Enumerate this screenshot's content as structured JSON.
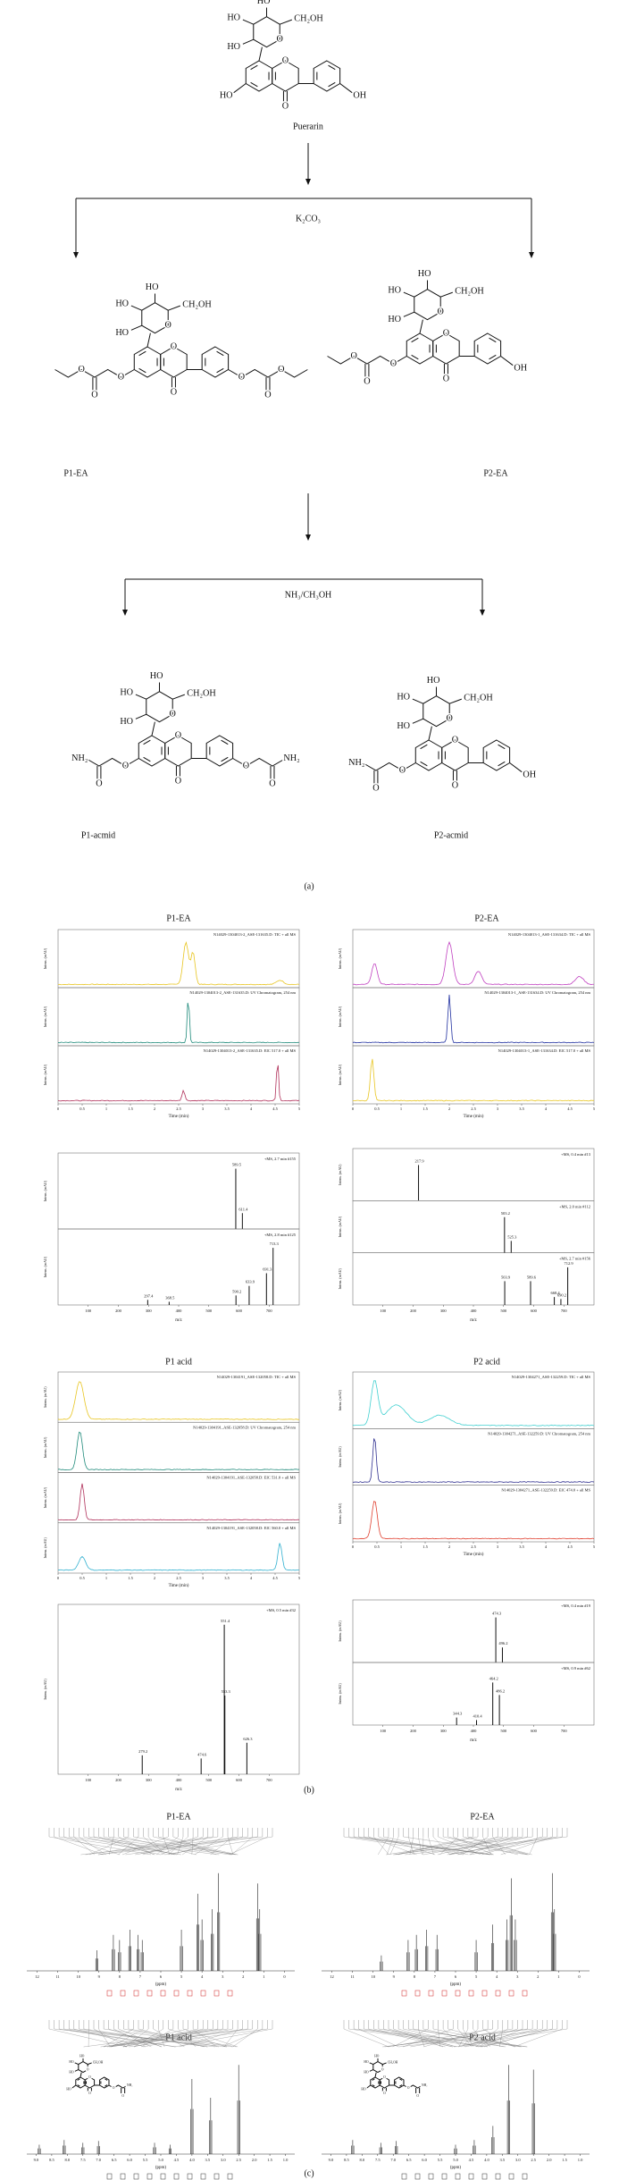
{
  "atoms": {
    "ho": "HO",
    "oh": "OH",
    "ch2oh": "CH₂OH",
    "o": "O",
    "nh2": "NH₂"
  },
  "panel_a": {
    "compounds": [
      "Puerarin",
      "P1-EA",
      "P2-EA",
      "P1-acmid",
      "P2-acmid"
    ],
    "reagents": [
      "K₂CO₃",
      "NH₃/CH₃OH"
    ],
    "label": "(a)"
  },
  "panel_b": {
    "label": "(b)",
    "time_axis_label": "Time (min)",
    "mz_axis_label": "m/z",
    "intensity_label": "Intens. (mAU)",
    "time_ticks": [
      0,
      0.5,
      1,
      1.5,
      2,
      2.5,
      3,
      3.5,
      4,
      4.5,
      5
    ],
    "time_xlim": [
      0,
      5
    ],
    "mz_ticks": [
      100,
      200,
      300,
      400,
      500,
      600,
      700
    ],
    "mz_xlim": [
      0,
      800
    ],
    "groups": [
      {
        "title": "P1-EA",
        "traces": [
          {
            "name": "N14029-1304013-2_ASE-131635.D: TIC + all MS",
            "color": "#e8c520"
          },
          {
            "name": "N14029-1304013-2_ASE-131635.D: UV Chromatogram, 254 nm",
            "color": "#1e8a7a"
          },
          {
            "name": "N14029-1304013-2_ASE-131635.D: EIC 517.0 + all MS",
            "color": "#b0305a"
          }
        ],
        "ms": [
          {
            "name": "+MS, 2.7 min #155",
            "peaks": [
              589.5,
              611.4
            ]
          },
          {
            "name": "+MS, 2.8 min #125",
            "peaks": [
              297.4,
              368.5,
              590.2,
              633.9,
              691.3,
              713.3
            ]
          }
        ]
      },
      {
        "title": "P2-EA",
        "traces": [
          {
            "name": "N14029-1304013-1_ASE-131634.D: TIC + all MS",
            "color": "#c040c0"
          },
          {
            "name": "N14029-1304013-1_ASE-131634.D: UV Chromatogram, 254 nm",
            "color": "#2030a0"
          },
          {
            "name": "N14029-1304013-1_ASE-131634.D: EIC 517.0 + all MS",
            "color": "#e8c520"
          }
        ],
        "ms": [
          {
            "name": "+MS, 0.4 min #13",
            "peaks": [
              217.9
            ]
          },
          {
            "name": "+MS, 2.0 min #112",
            "peaks": [
              503.2,
              525.3
            ]
          },
          {
            "name": "+MS, 2.7 min #156",
            "peaks": [
              503.9,
              589.6,
              668.4,
              690.2,
              712.9
            ]
          }
        ]
      },
      {
        "title": "P1 acid",
        "traces": [
          {
            "name": "N14029-1304191_ASE-132058.D: TIC + all MS",
            "color": "#e8c520"
          },
          {
            "name": "N14029-1304191_ASE-132058.D: UV Chromatogram, 254 nm",
            "color": "#1e8a7a"
          },
          {
            "name": "N14029-1304191_ASE-132058.D: EIC 531.0 + all MS",
            "color": "#b0305a"
          },
          {
            "name": "N14029-1304191_ASE-132058.D: EIC 560.0 + all MS",
            "color": "#30b0d0"
          }
        ],
        "ms": [
          {
            "name": "+MS, 0.5 min #32",
            "peaks": [
              279.2,
              474.6,
              551.4,
              553.3,
              626.3
            ]
          }
        ]
      },
      {
        "title": "P2 acid",
        "traces": [
          {
            "name": "N14029-1304271_ASE-132259.D: TIC + all MS",
            "color": "#40d0d0"
          },
          {
            "name": "N14029-1304271_ASE-132259.D: UV Chromatogram, 254 nm",
            "color": "#303090"
          },
          {
            "name": "N14029-1304271_ASE-132259.D: EIC 474.0 + all MS",
            "color": "#e04030"
          }
        ],
        "ms": [
          {
            "name": "+MS, 0.4 min #19",
            "peaks": [
              474.3,
              496.2
            ]
          },
          {
            "name": "+MS, 0.9 min #62",
            "peaks": [
              344.3,
              410.4,
              464.2,
              486.2
            ]
          }
        ]
      }
    ]
  },
  "panel_c": {
    "label": "(c)",
    "ppm_label": "(ppm)",
    "spectra": [
      {
        "title": "P1-EA"
      },
      {
        "title": "P2-EA"
      },
      {
        "title": "P1 acid"
      },
      {
        "title": "P2 acid"
      }
    ],
    "ppm_ticks_wide": [
      12,
      11,
      10,
      9,
      8,
      7,
      6,
      5,
      4,
      3,
      2,
      1,
      0
    ],
    "ppm_xlim_wide": [
      12.5,
      -0.5
    ],
    "ppm_ticks_narrow": [
      {
        "value": 9,
        "label": "9.0"
      },
      8.5,
      {
        "value": 8,
        "label": "8.0"
      },
      7.5,
      {
        "value": 7,
        "label": "7.0"
      },
      6.5,
      {
        "value": 6,
        "label": "6.0"
      },
      5.5,
      {
        "value": 5,
        "label": "5.0"
      },
      4.5,
      {
        "value": 4,
        "label": "4.0"
      },
      3.5,
      {
        "value": 3,
        "label": "3.0"
      },
      2.5,
      {
        "value": 2,
        "label": "2.0"
      },
      1.5,
      {
        "value": 1,
        "label": "1.0"
      }
    ],
    "ppm_xlim_narrow": [
      9.3,
      0.7
    ]
  }
}
